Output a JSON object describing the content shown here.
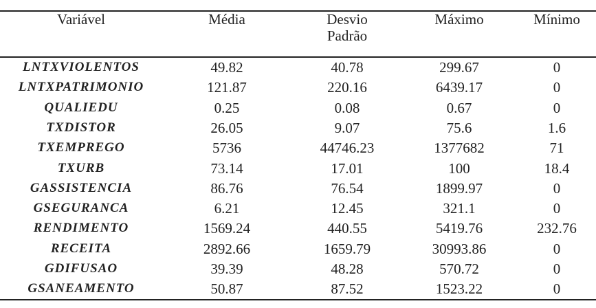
{
  "table": {
    "header": [
      "Variável",
      "Média",
      "Desvio Padrão",
      "Máximo",
      "Mínimo"
    ],
    "rows": [
      [
        "LNTXVIOLENTOS",
        "49.82",
        "40.78",
        "299.67",
        "0"
      ],
      [
        "LNTXPATRIMONIO",
        "121.87",
        "220.16",
        "6439.17",
        "0"
      ],
      [
        "QUALIEDU",
        "0.25",
        "0.08",
        "0.67",
        "0"
      ],
      [
        "TXDISTOR",
        "26.05",
        "9.07",
        "75.6",
        "1.6"
      ],
      [
        "TXEMPREGO",
        "5736",
        "44746.23",
        "1377682",
        "71"
      ],
      [
        "TXURB",
        "73.14",
        "17.01",
        "100",
        "18.4"
      ],
      [
        "GASSISTENCIA",
        "86.76",
        "76.54",
        "1899.97",
        "0"
      ],
      [
        "GSEGURANCA",
        "6.21",
        "12.45",
        "321.1",
        "0"
      ],
      [
        "RENDIMENTO",
        "1569.24",
        "440.55",
        "5419.76",
        "232.76"
      ],
      [
        "RECEITA",
        "2892.66",
        "1659.79",
        "30993.86",
        "0"
      ],
      [
        "GDIFUSAO",
        "39.39",
        "48.28",
        "570.72",
        "0"
      ],
      [
        "GSANEAMENTO",
        "50.87",
        "87.52",
        "1523.22",
        "0"
      ]
    ]
  }
}
